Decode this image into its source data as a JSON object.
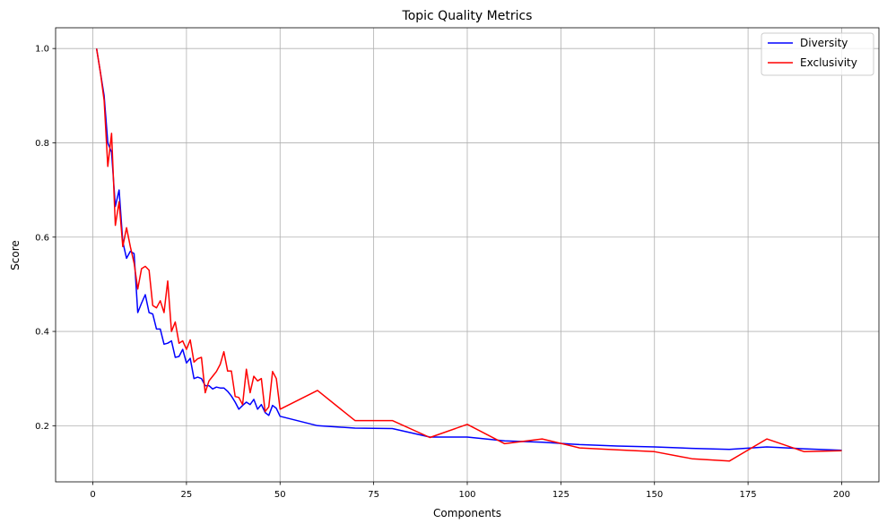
{
  "chart_data": {
    "type": "line",
    "title": "Topic Quality Metrics",
    "xlabel": "Components",
    "ylabel": "Score",
    "xlim": [
      -9.95,
      209.95
    ],
    "ylim": [
      0.081,
      1.044
    ],
    "xticks": [
      0,
      25,
      50,
      75,
      100,
      125,
      150,
      175,
      200
    ],
    "xtick_labels": [
      "0",
      "25",
      "50",
      "75",
      "100",
      "125",
      "150",
      "175",
      "200"
    ],
    "yticks": [
      0.2,
      0.4,
      0.6,
      0.8,
      1.0
    ],
    "ytick_labels": [
      "0.2",
      "0.4",
      "0.6",
      "0.8",
      "1.0"
    ],
    "grid": true,
    "legend_position": "top-right",
    "x": [
      1,
      2,
      3,
      4,
      5,
      6,
      7,
      8,
      9,
      10,
      11,
      12,
      13,
      14,
      15,
      16,
      17,
      18,
      19,
      20,
      21,
      22,
      23,
      24,
      25,
      26,
      27,
      28,
      29,
      30,
      31,
      32,
      33,
      34,
      35,
      36,
      37,
      38,
      39,
      40,
      41,
      42,
      43,
      44,
      45,
      46,
      47,
      48,
      49,
      50,
      60,
      70,
      80,
      90,
      100,
      110,
      120,
      130,
      140,
      150,
      160,
      170,
      180,
      190,
      200
    ],
    "series": [
      {
        "name": "Diversity",
        "color": "#0000ff",
        "values": [
          1.0,
          0.95,
          0.9,
          0.8,
          0.78,
          0.665,
          0.7,
          0.59,
          0.555,
          0.57,
          0.565,
          0.44,
          0.46,
          0.478,
          0.44,
          0.437,
          0.405,
          0.405,
          0.373,
          0.375,
          0.38,
          0.345,
          0.347,
          0.362,
          0.333,
          0.343,
          0.3,
          0.303,
          0.3,
          0.285,
          0.285,
          0.278,
          0.282,
          0.28,
          0.28,
          0.273,
          0.263,
          0.25,
          0.235,
          0.243,
          0.25,
          0.245,
          0.256,
          0.235,
          0.245,
          0.228,
          0.222,
          0.243,
          0.237,
          0.22,
          0.2,
          0.195,
          0.194,
          0.176,
          0.176,
          0.168,
          0.165,
          0.16,
          0.157,
          0.155,
          0.152,
          0.15,
          0.155,
          0.151,
          0.148
        ]
      },
      {
        "name": "Exclusivity",
        "color": "#ff0000",
        "values": [
          1.0,
          0.95,
          0.89,
          0.75,
          0.82,
          0.625,
          0.675,
          0.58,
          0.62,
          0.58,
          0.545,
          0.49,
          0.533,
          0.538,
          0.53,
          0.455,
          0.45,
          0.465,
          0.44,
          0.507,
          0.4,
          0.42,
          0.375,
          0.38,
          0.362,
          0.382,
          0.335,
          0.342,
          0.345,
          0.27,
          0.295,
          0.305,
          0.315,
          0.33,
          0.357,
          0.316,
          0.316,
          0.262,
          0.26,
          0.245,
          0.32,
          0.27,
          0.305,
          0.295,
          0.3,
          0.23,
          0.24,
          0.315,
          0.3,
          0.235,
          0.275,
          0.211,
          0.211,
          0.175,
          0.203,
          0.162,
          0.172,
          0.153,
          0.149,
          0.145,
          0.13,
          0.125,
          0.172,
          0.145,
          0.147
        ]
      }
    ]
  }
}
